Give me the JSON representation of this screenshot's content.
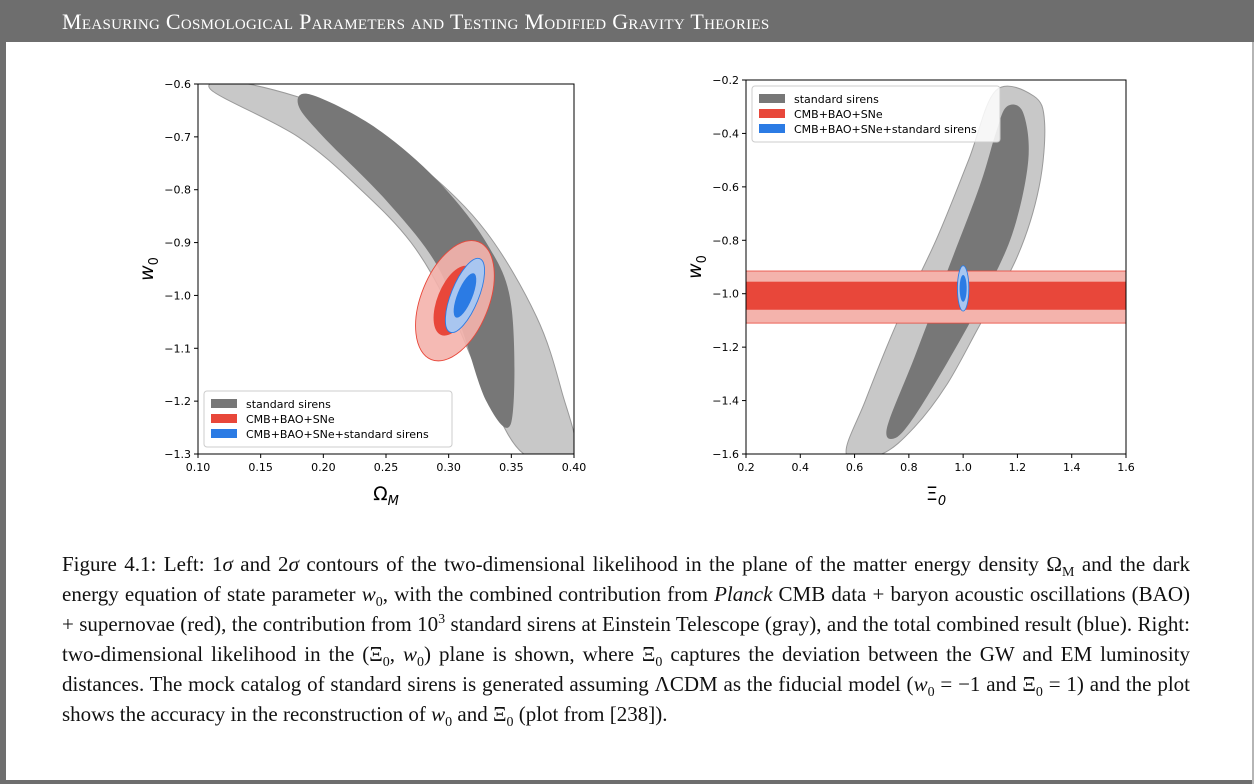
{
  "header": {
    "title": "Measuring Cosmological Parameters and Testing Modified Gravity Theories"
  },
  "chart_data": [
    {
      "type": "contour",
      "panel": "left",
      "xlabel": "Ω_M",
      "ylabel": "w_0",
      "xlim": [
        0.1,
        0.4
      ],
      "ylim": [
        -1.3,
        -0.6
      ],
      "xticks": [
        "0.10",
        "0.15",
        "0.20",
        "0.25",
        "0.30",
        "0.35",
        "0.40"
      ],
      "yticks": [
        "−0.6",
        "−0.7",
        "−0.8",
        "−0.9",
        "−1.0",
        "−1.1",
        "−1.2",
        "−1.3"
      ],
      "legend_position": "lower-left",
      "series": [
        {
          "name": "standard sirens",
          "color": "#777777",
          "outer": [
            [
              0.14,
              -0.6
            ],
            [
              0.22,
              -0.66
            ],
            [
              0.28,
              -0.76
            ],
            [
              0.33,
              -0.88
            ],
            [
              0.37,
              -1.04
            ],
            [
              0.39,
              -1.18
            ],
            [
              0.4,
              -1.3
            ],
            [
              0.36,
              -1.3
            ],
            [
              0.33,
              -1.18
            ],
            [
              0.3,
              -1.02
            ],
            [
              0.27,
              -0.9
            ],
            [
              0.23,
              -0.8
            ],
            [
              0.18,
              -0.7
            ],
            [
              0.11,
              -0.61
            ]
          ],
          "inner": [
            [
              0.19,
              -0.62
            ],
            [
              0.24,
              -0.68
            ],
            [
              0.29,
              -0.78
            ],
            [
              0.33,
              -0.9
            ],
            [
              0.35,
              -1.02
            ],
            [
              0.35,
              -1.24
            ],
            [
              0.33,
              -1.2
            ],
            [
              0.31,
              -1.06
            ],
            [
              0.29,
              -0.94
            ],
            [
              0.25,
              -0.82
            ],
            [
              0.2,
              -0.7
            ],
            [
              0.18,
              -0.64
            ]
          ]
        },
        {
          "name": "CMB+BAO+SNe",
          "color": "#e8473a",
          "center": [
            0.305,
            -1.01
          ],
          "sigma1_half_widths": [
            0.014,
            0.07
          ],
          "sigma2_half_widths": [
            0.027,
            0.12
          ]
        },
        {
          "name": "CMB+BAO+SNe+standard sirens",
          "color": "#2b7be4",
          "center": [
            0.313,
            -1.0
          ],
          "sigma1_half_widths": [
            0.006,
            0.045
          ],
          "sigma2_half_widths": [
            0.011,
            0.075
          ]
        }
      ]
    },
    {
      "type": "contour",
      "panel": "right",
      "xlabel": "Ξ_0",
      "ylabel": "w_0",
      "xlim": [
        0.2,
        1.6
      ],
      "ylim": [
        -1.6,
        -0.2
      ],
      "xticks": [
        "0.2",
        "0.4",
        "0.6",
        "0.8",
        "1.0",
        "1.2",
        "1.4",
        "1.6"
      ],
      "yticks": [
        "−0.2",
        "−0.4",
        "−0.6",
        "−0.8",
        "−1.0",
        "−1.2",
        "−1.4",
        "−1.6"
      ],
      "legend_position": "top-left",
      "series": [
        {
          "name": "standard sirens",
          "color": "#777777",
          "outer": [
            [
              1.12,
              -0.24
            ],
            [
              1.26,
              -0.26
            ],
            [
              1.3,
              -0.36
            ],
            [
              1.28,
              -0.6
            ],
            [
              1.2,
              -0.86
            ],
            [
              1.06,
              -1.12
            ],
            [
              0.94,
              -1.34
            ],
            [
              0.82,
              -1.5
            ],
            [
              0.7,
              -1.6
            ],
            [
              0.57,
              -1.6
            ],
            [
              0.64,
              -1.4
            ],
            [
              0.76,
              -1.1
            ],
            [
              0.9,
              -0.8
            ],
            [
              1.02,
              -0.5
            ]
          ],
          "inner": [
            [
              1.16,
              -0.3
            ],
            [
              1.22,
              -0.32
            ],
            [
              1.24,
              -0.5
            ],
            [
              1.18,
              -0.78
            ],
            [
              1.06,
              -1.04
            ],
            [
              0.94,
              -1.26
            ],
            [
              0.82,
              -1.46
            ],
            [
              0.75,
              -1.54
            ],
            [
              0.72,
              -1.5
            ],
            [
              0.82,
              -1.24
            ],
            [
              0.94,
              -0.92
            ],
            [
              1.06,
              -0.6
            ],
            [
              1.12,
              -0.4
            ]
          ]
        },
        {
          "name": "CMB+BAO+SNe",
          "color": "#e8473a",
          "sigma1_w0_range": [
            -1.06,
            -0.955
          ],
          "sigma2_w0_range": [
            -1.11,
            -0.915
          ]
        },
        {
          "name": "CMB+BAO+SNe+standard sirens",
          "color": "#2b7be4",
          "center": [
            1.0,
            -0.98
          ],
          "sigma1_half_widths": [
            0.013,
            0.05
          ],
          "sigma2_half_widths": [
            0.021,
            0.085
          ]
        }
      ]
    }
  ],
  "caption": {
    "p1": "Figure 4.1: Left: 1",
    "sigma": "σ",
    "p2": " and 2",
    "p3": " contours of the two-dimensional likelihood in the plane of the matter energy density ",
    "omega": "Ω",
    "sub_M": "M",
    "p4": " and the dark energy equation of state parameter ",
    "w": "w",
    "sub_0": "0",
    "p5": ", with the combined contribution from ",
    "planck": "Planck",
    "p6": " CMB data + baryon acoustic oscillations (BAO) + supernovae (red), the contribution from 10",
    "sup_3": "3",
    "p7": " standard sirens at Einstein Telescope (gray), and the total combined result (blue). Right: two-dimensional likelihood in the (",
    "xi": "Ξ",
    "p8": ", ",
    "p9": ") plane is shown, where ",
    "p10": " captures the deviation between the GW and EM luminosity distances. The mock catalog of standard sirens is generated assuming ",
    "lcdm": "ΛCDM",
    "p11": " as the fiducial model (",
    "p12": " = −1 and ",
    "p13": " = 1) and the plot shows the accuracy in the reconstruction of ",
    "p14": " and ",
    "p15": " (plot from [238])."
  }
}
